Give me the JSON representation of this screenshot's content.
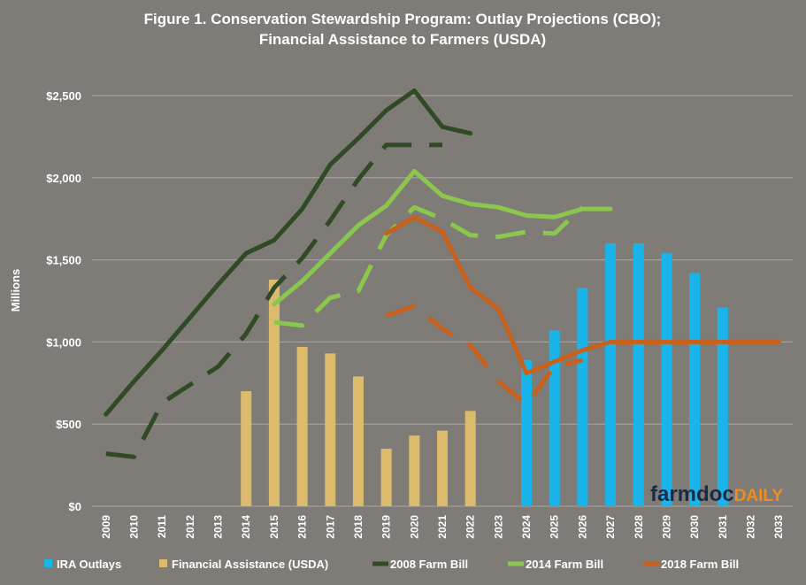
{
  "chart_data": {
    "type": "bar",
    "title": "Figure 1. Conservation Stewardship Program: Outlay Projections (CBO);",
    "subtitle": "Financial Assistance to Farmers (USDA)",
    "ylabel": "Millions",
    "ylim": [
      0,
      2500
    ],
    "yticks": [
      0,
      500,
      1000,
      1500,
      2000,
      2500
    ],
    "ytick_labels": [
      "$0",
      "$500",
      "$1,000",
      "$1,500",
      "$2,000",
      "$2,500"
    ],
    "grid": true,
    "legend_position": "bottom",
    "categories": [
      "2009",
      "2010",
      "2011",
      "2012",
      "2013",
      "2014",
      "2015",
      "2016",
      "2017",
      "2018",
      "2019",
      "2020",
      "2021",
      "2022",
      "2023",
      "2024",
      "2025",
      "2026",
      "2027",
      "2028",
      "2029",
      "2030",
      "2031",
      "2032",
      "2033"
    ],
    "series": [
      {
        "name": "IRA Outlays",
        "kind": "bar",
        "color": "#19b4ea",
        "values": [
          null,
          null,
          null,
          null,
          null,
          null,
          null,
          null,
          null,
          null,
          null,
          null,
          null,
          null,
          null,
          890,
          1070,
          1330,
          1600,
          1600,
          1540,
          1420,
          1210,
          null,
          null
        ]
      },
      {
        "name": "Financial Assistance (USDA)",
        "kind": "bar",
        "color": "#dcbc6c",
        "values": [
          null,
          null,
          null,
          null,
          null,
          700,
          1380,
          970,
          930,
          790,
          350,
          430,
          460,
          580,
          null,
          null,
          null,
          null,
          null,
          null,
          null,
          null,
          null,
          null,
          null
        ]
      },
      {
        "name": "2008 Farm Bill",
        "kind": "line",
        "color": "#2f4a25",
        "solid": [
          560,
          760,
          950,
          1150,
          1350,
          1540,
          1620,
          1810,
          2080,
          2240,
          2410,
          2530,
          2310,
          2270,
          null,
          null,
          null,
          null,
          null,
          null,
          null,
          null,
          null,
          null,
          null
        ],
        "dashed": [
          320,
          300,
          630,
          740,
          850,
          1050,
          1330,
          1510,
          1740,
          1990,
          2200,
          2200,
          2200,
          null,
          null,
          null,
          null,
          null,
          null,
          null,
          null,
          null,
          null,
          null,
          null
        ]
      },
      {
        "name": "2014 Farm Bill",
        "kind": "line",
        "color": "#8bc74c",
        "solid": [
          null,
          null,
          null,
          null,
          null,
          null,
          1230,
          1370,
          1540,
          1710,
          1830,
          2040,
          1890,
          1840,
          1820,
          1770,
          1760,
          1810,
          1810,
          null,
          null,
          null,
          null,
          null,
          null
        ],
        "dashed": [
          null,
          null,
          null,
          null,
          null,
          null,
          1120,
          1100,
          1270,
          1310,
          1650,
          1820,
          1750,
          1650,
          1640,
          1670,
          1660,
          1820,
          null,
          null,
          null,
          null,
          null,
          null,
          null
        ]
      },
      {
        "name": "2018 Farm Bill",
        "kind": "line",
        "color": "#c9611c",
        "solid": [
          null,
          null,
          null,
          null,
          null,
          null,
          null,
          null,
          null,
          null,
          1660,
          1760,
          1670,
          1330,
          1200,
          810,
          880,
          950,
          1000,
          1000,
          1000,
          1000,
          1000,
          1000,
          1000
        ],
        "dashed": [
          null,
          null,
          null,
          null,
          null,
          null,
          null,
          null,
          null,
          null,
          1160,
          1220,
          1080,
          980,
          760,
          620,
          850,
          890,
          null,
          null,
          null,
          null,
          null,
          null,
          null
        ]
      }
    ]
  },
  "logo": {
    "part1": "farmdoc",
    "part2": "DAILY"
  }
}
